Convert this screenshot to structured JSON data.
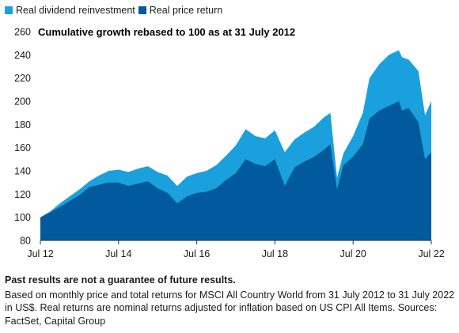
{
  "legend": {
    "dividend_label": "Real dividend reinvestment",
    "price_label": "Real price return"
  },
  "colors": {
    "dividend": "#1aa1dd",
    "price": "#005a9c",
    "axis": "#333333"
  },
  "footnote": {
    "disclaimer": "Past results are not a guarantee of future results.",
    "source": "Based on monthly price and total returns for MSCI All Country World from 31 July 2012 to 31 July 2022 in US$. Real returns are nominal returns adjusted for inflation based on US CPI All Items. Sources: FactSet, Capital Group"
  },
  "chart_data": {
    "type": "area",
    "title": "Cumulative growth rebased to 100 as at 31 July 2012",
    "xlabel": "",
    "ylabel": "",
    "ylim": [
      80,
      260
    ],
    "yticks": [
      80,
      100,
      120,
      140,
      160,
      180,
      200,
      220,
      240,
      260
    ],
    "xlim": [
      2012.58,
      2022.58
    ],
    "xticks": [
      {
        "label": "Jul 12",
        "value": 2012.58
      },
      {
        "label": "Jul 14",
        "value": 2014.58
      },
      {
        "label": "Jul 16",
        "value": 2016.58
      },
      {
        "label": "Jul 18",
        "value": 2018.58
      },
      {
        "label": "Jul 20",
        "value": 2020.58
      },
      {
        "label": "Jul 22",
        "value": 2022.58
      }
    ],
    "grid": false,
    "legend_position": "top-left",
    "stacking": "overlay",
    "x": [
      2012.58,
      2012.83,
      2013.08,
      2013.33,
      2013.58,
      2013.83,
      2014.08,
      2014.33,
      2014.58,
      2014.83,
      2015.08,
      2015.33,
      2015.58,
      2015.83,
      2016.08,
      2016.33,
      2016.58,
      2016.83,
      2017.08,
      2017.33,
      2017.58,
      2017.83,
      2018.08,
      2018.33,
      2018.58,
      2018.83,
      2019.08,
      2019.33,
      2019.58,
      2019.83,
      2020.0,
      2020.17,
      2020.33,
      2020.58,
      2020.83,
      2021.0,
      2021.25,
      2021.5,
      2021.75,
      2021.83,
      2022.0,
      2022.25,
      2022.42,
      2022.58
    ],
    "series": [
      {
        "name": "Real dividend reinvestment",
        "values": [
          100,
          105,
          112,
          118,
          124,
          131,
          136,
          140,
          141,
          139,
          142,
          144,
          139,
          136,
          127,
          135,
          138,
          140,
          145,
          153,
          162,
          176,
          170,
          168,
          175,
          156,
          167,
          173,
          178,
          186,
          190,
          134,
          155,
          170,
          190,
          220,
          232,
          240,
          244,
          238,
          236,
          226,
          188,
          200
        ]
      },
      {
        "name": "Real price return",
        "values": [
          100,
          104,
          109,
          114,
          119,
          126,
          128,
          130,
          130,
          127,
          129,
          131,
          125,
          121,
          112,
          118,
          121,
          122,
          125,
          132,
          138,
          150,
          146,
          144,
          150,
          127,
          143,
          148,
          152,
          158,
          163,
          124,
          145,
          152,
          163,
          185,
          192,
          196,
          200,
          192,
          194,
          182,
          150,
          156
        ]
      }
    ]
  }
}
